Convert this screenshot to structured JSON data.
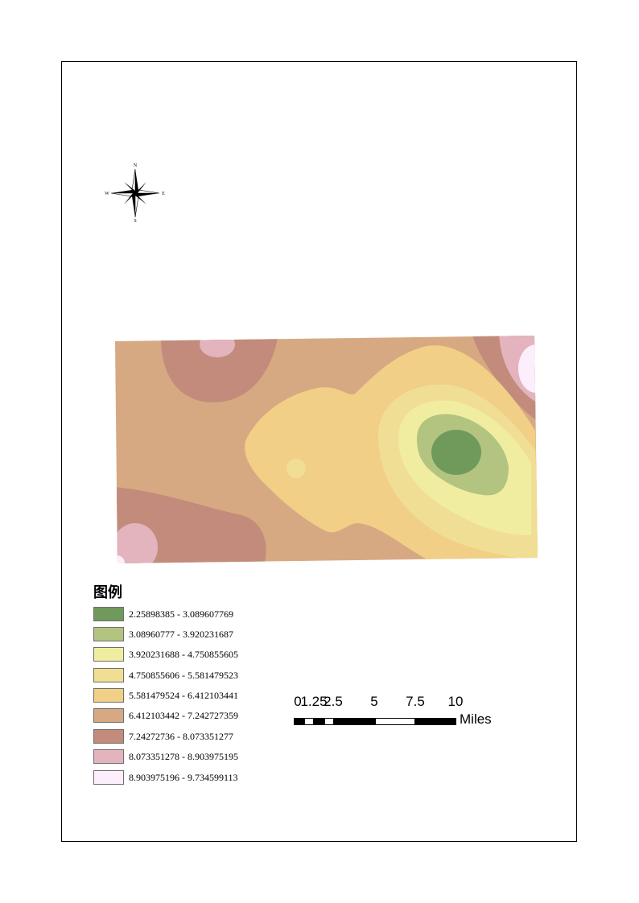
{
  "legend": {
    "title": "图例",
    "items": [
      {
        "label": "2.25898385 - 3.089607769",
        "color": "#6f9a5b"
      },
      {
        "label": "3.08960777 - 3.920231687",
        "color": "#b2c47f"
      },
      {
        "label": "3.920231688 - 4.750855605",
        "color": "#f1eda0"
      },
      {
        "label": "4.750855606 - 5.581479523",
        "color": "#f1de95"
      },
      {
        "label": "5.581479524 - 6.412103441",
        "color": "#f1cf87"
      },
      {
        "label": "6.412103442 - 7.242727359",
        "color": "#d7a982"
      },
      {
        "label": "7.24272736 - 8.073351277",
        "color": "#c28b7c"
      },
      {
        "label": "8.073351278 - 8.903975195",
        "color": "#e3b4be"
      },
      {
        "label": "8.903975196 - 9.734599113",
        "color": "#fdeefc"
      }
    ]
  },
  "north_arrow": {
    "n": "N",
    "s": "S",
    "e": "E",
    "w": "W"
  },
  "scalebar": {
    "ticks": [
      "0",
      "1.25",
      "2.5",
      "5",
      "7.5",
      "10"
    ],
    "units": "Miles"
  }
}
